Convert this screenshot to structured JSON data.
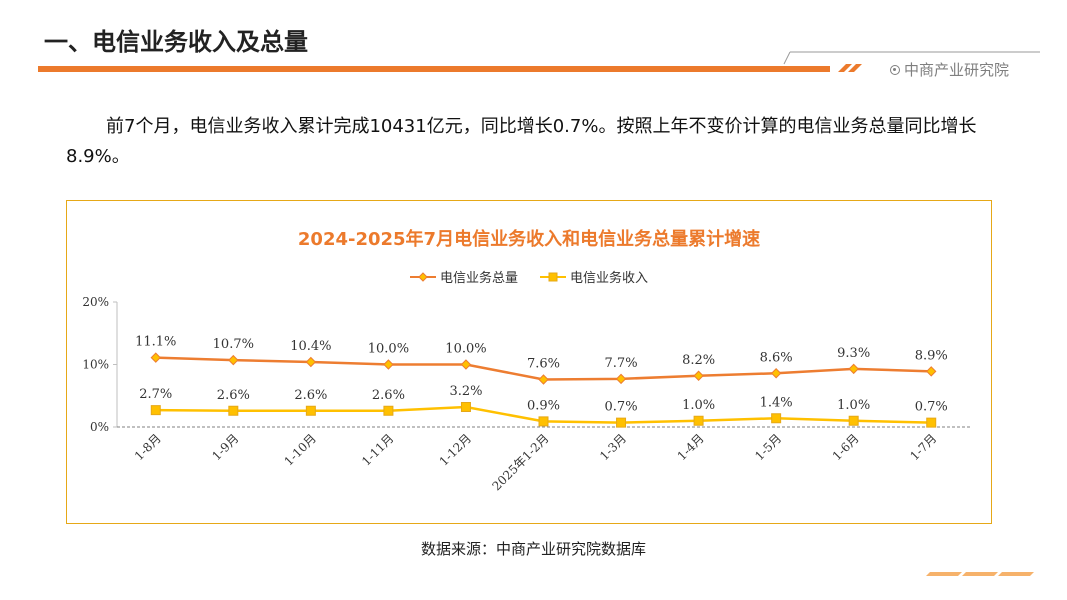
{
  "header": {
    "title": "一、电信业务收入及总量",
    "brand": "中商产业研究院"
  },
  "summary": "前7个月，电信业务收入累计完成10431亿元，同比增长0.7%。按照上年不变价计算的电信业务总量同比增长8.9%。",
  "source": "数据来源：中商产业研究院数据库",
  "colors": {
    "accent": "#ec7a2c",
    "series1": "#ed7d31",
    "series2": "#ffc000",
    "frame": "#e6a817"
  },
  "chart_data": {
    "type": "line",
    "title": "2024-2025年7月电信业务收入和电信业务总量累计增速",
    "categories": [
      "1-8月",
      "1-9月",
      "1-10月",
      "1-11月",
      "1-12月",
      "2025年1-2月",
      "1-3月",
      "1-4月",
      "1-5月",
      "1-6月",
      "1-7月"
    ],
    "series": [
      {
        "name": "电信业务总量",
        "values": [
          11.1,
          10.7,
          10.4,
          10.0,
          10.0,
          7.6,
          7.7,
          8.2,
          8.6,
          9.3,
          8.9
        ],
        "labels": [
          "11.1%",
          "10.7%",
          "10.4%",
          "10.0%",
          "10.0%",
          "7.6%",
          "7.7%",
          "8.2%",
          "8.6%",
          "9.3%",
          "8.9%"
        ],
        "marker": "diamond",
        "color": "#ed7d31"
      },
      {
        "name": "电信业务收入",
        "values": [
          2.7,
          2.6,
          2.6,
          2.6,
          3.2,
          0.9,
          0.7,
          1.0,
          1.4,
          1.0,
          0.7
        ],
        "labels": [
          "2.7%",
          "2.6%",
          "2.6%",
          "2.6%",
          "3.2%",
          "0.9%",
          "0.7%",
          "1.0%",
          "1.4%",
          "1.0%",
          "0.7%"
        ],
        "marker": "square",
        "color": "#ffc000"
      }
    ],
    "yticks": [
      0,
      10,
      20
    ],
    "ytick_labels": [
      "0%",
      "10%",
      "20%"
    ],
    "ylim": [
      0,
      20
    ],
    "legend_position": "top-center",
    "grid": false
  }
}
